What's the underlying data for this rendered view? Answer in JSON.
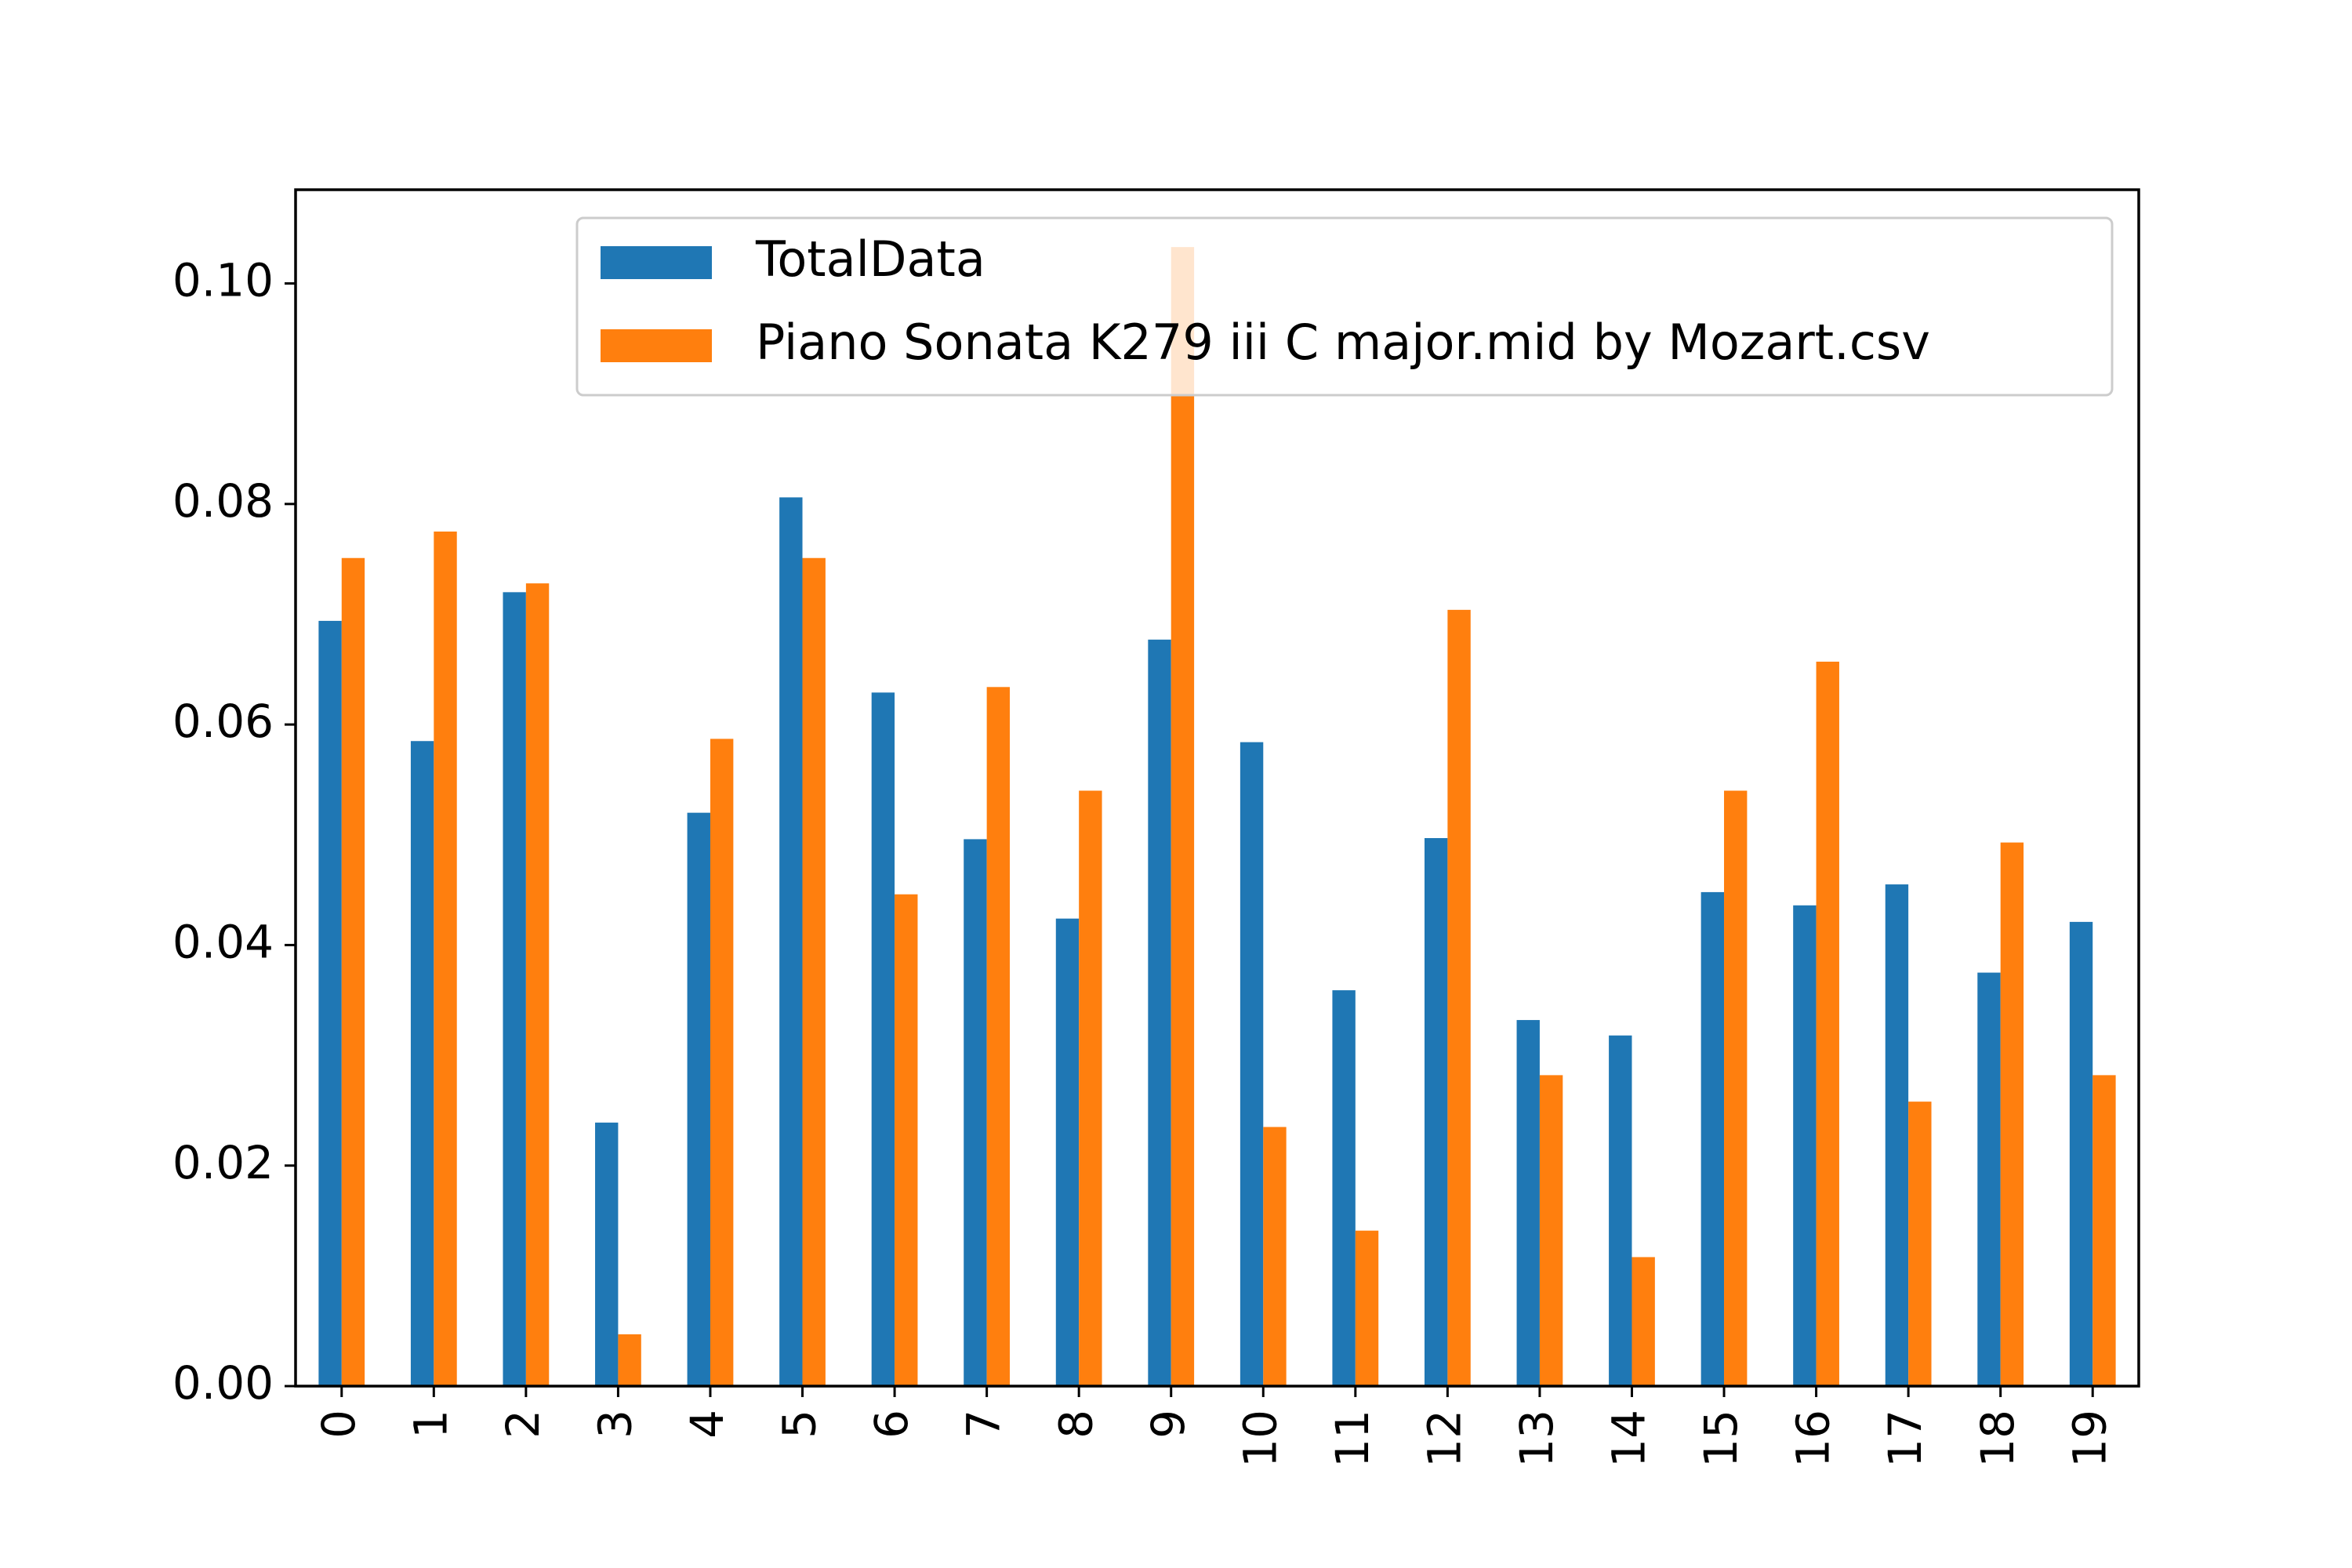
{
  "chart_data": {
    "type": "bar",
    "title": "",
    "xlabel": "",
    "ylabel": "",
    "categories": [
      "0",
      "1",
      "2",
      "3",
      "4",
      "5",
      "6",
      "7",
      "8",
      "9",
      "10",
      "11",
      "12",
      "13",
      "14",
      "15",
      "16",
      "17",
      "18",
      "19"
    ],
    "series": [
      {
        "name": "TotalData",
        "color": "#1f77b4",
        "values": [
          0.0694,
          0.0585,
          0.072,
          0.0239,
          0.052,
          0.0806,
          0.0629,
          0.0496,
          0.0424,
          0.0677,
          0.0584,
          0.0359,
          0.0497,
          0.0332,
          0.0318,
          0.0448,
          0.0436,
          0.0455,
          0.0375,
          0.0421
        ]
      },
      {
        "name": "Piano Sonata K279 iii C major.mid by Mozart.csv",
        "color": "#ff7f0e",
        "values": [
          0.0751,
          0.0775,
          0.0728,
          0.0047,
          0.0587,
          0.0751,
          0.0446,
          0.0634,
          0.054,
          0.1033,
          0.0235,
          0.0141,
          0.0704,
          0.0282,
          0.0117,
          0.054,
          0.0657,
          0.0258,
          0.0493,
          0.0282
        ]
      }
    ],
    "ylim": [
      0,
      0.1085
    ],
    "yticks": [
      "0.00",
      "0.02",
      "0.04",
      "0.06",
      "0.08",
      "0.10"
    ],
    "ytick_values": [
      0,
      0.02,
      0.04,
      0.06,
      0.08,
      0.1
    ],
    "grid": false,
    "legend_position": "upper-center"
  }
}
